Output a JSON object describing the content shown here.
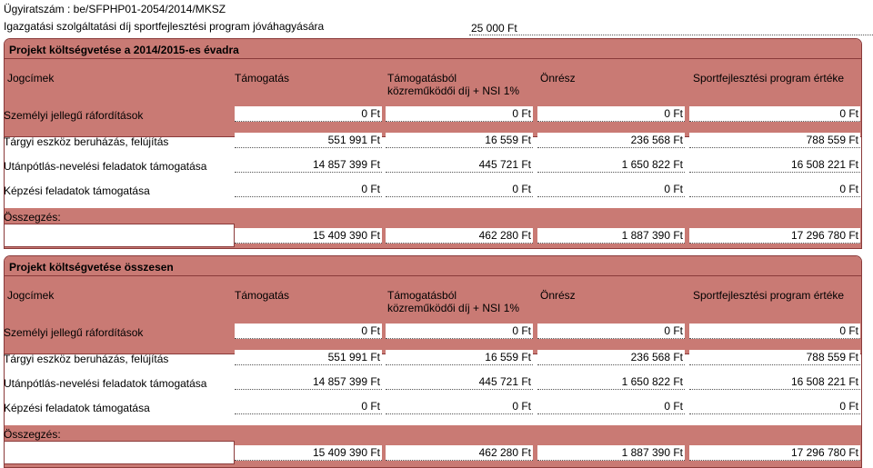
{
  "header": {
    "case_number": "Ügyiratszám : be/SFPHP01-2054/2014/MKSZ",
    "fee_label": "Igazgatási szolgáltatási díj sportfejlesztési program jóváhagyására",
    "fee_value": "25 000 Ft"
  },
  "columns": {
    "jogcimek": "Jogcímek",
    "tamogatas": "Támogatás",
    "kozremukodoi_line1": "Támogatásból",
    "kozremukodoi_line2": "közreműködői díj + NSI 1%",
    "onresz": "Önrész",
    "program_erteke": "Sportfejlesztési program értéke"
  },
  "sections": [
    {
      "title": "Projekt költségvetése a 2014/2015-es évadra",
      "rows": [
        {
          "label": "Személyi jellegű ráfordítások",
          "values": [
            "0 Ft",
            "0 Ft",
            "0 Ft",
            "0 Ft"
          ]
        },
        {
          "label": "Tárgyi eszköz beruházás, felújítás",
          "values": [
            "551 991 Ft",
            "16 559 Ft",
            "236 568 Ft",
            "788 559 Ft"
          ]
        },
        {
          "label": "Utánpótlás-nevelési feladatok támogatása",
          "values": [
            "14 857 399 Ft",
            "445 721 Ft",
            "1 650 822 Ft",
            "16 508 221 Ft"
          ]
        },
        {
          "label": "Képzési feladatok támogatása",
          "values": [
            "0 Ft",
            "0 Ft",
            "0 Ft",
            "0 Ft"
          ]
        }
      ],
      "summary_label": "Összegzés:",
      "summary_values": [
        "15 409 390 Ft",
        "462 280 Ft",
        "1 887 390 Ft",
        "17 296 780 Ft"
      ]
    },
    {
      "title": "Projekt költségvetése összesen",
      "rows": [
        {
          "label": "Személyi jellegű ráfordítások",
          "values": [
            "0 Ft",
            "0 Ft",
            "0 Ft",
            "0 Ft"
          ]
        },
        {
          "label": "Tárgyi eszköz beruházás, felújítás",
          "values": [
            "551 991 Ft",
            "16 559 Ft",
            "236 568 Ft",
            "788 559 Ft"
          ]
        },
        {
          "label": "Utánpótlás-nevelési feladatok támogatása",
          "values": [
            "14 857 399 Ft",
            "445 721 Ft",
            "1 650 822 Ft",
            "16 508 221 Ft"
          ]
        },
        {
          "label": "Képzési feladatok támogatása",
          "values": [
            "0 Ft",
            "0 Ft",
            "0 Ft",
            "0 Ft"
          ]
        }
      ],
      "summary_label": "Összegzés:",
      "summary_values": [
        "15 409 390 Ft",
        "462 280 Ft",
        "1 887 390 Ft",
        "17 296 780 Ft"
      ]
    }
  ],
  "colors": {
    "band": "#c97a74",
    "border": "#8a3a3a"
  }
}
